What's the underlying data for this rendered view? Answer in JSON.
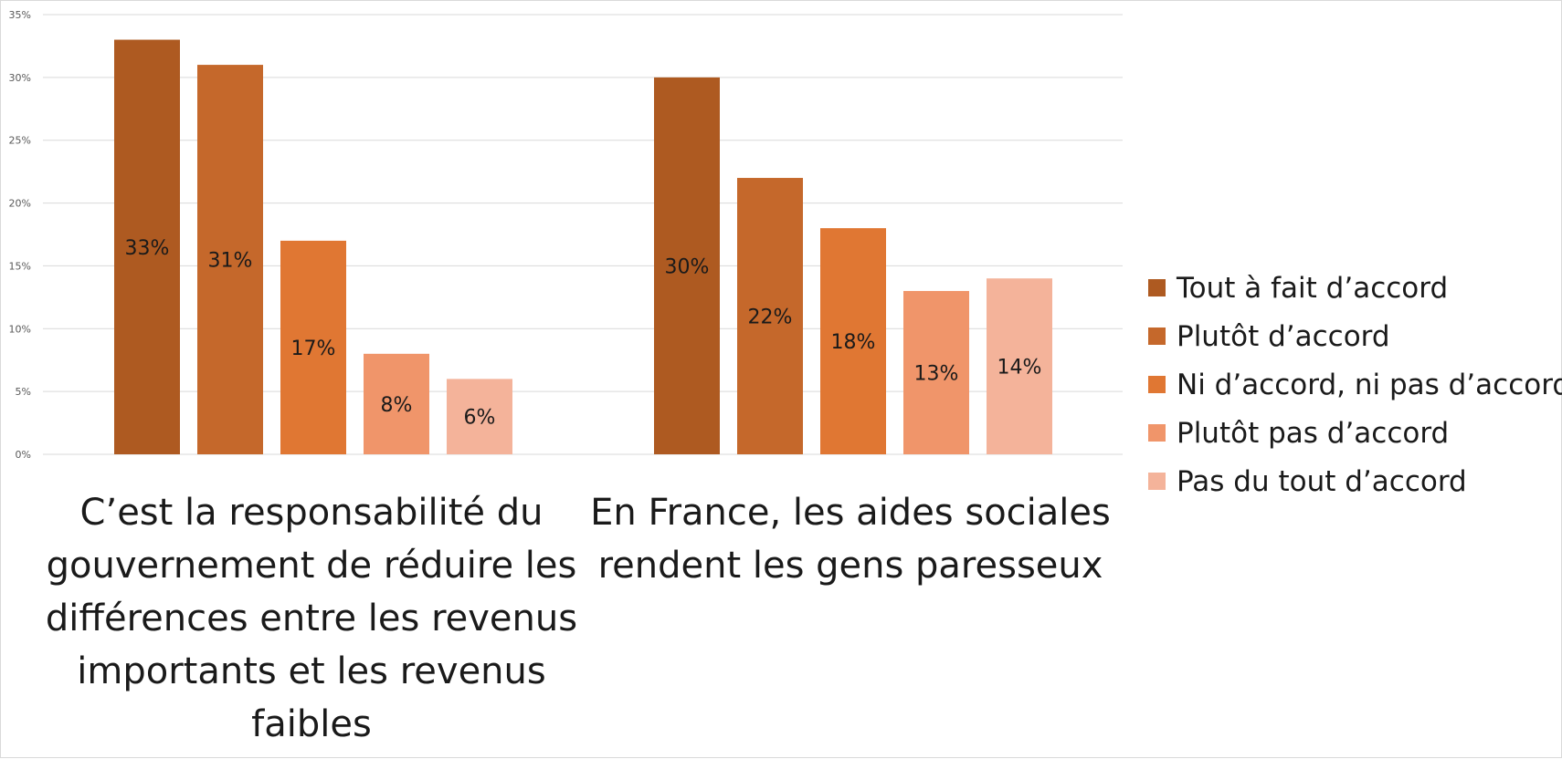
{
  "chart_data": {
    "type": "bar",
    "categories": [
      "C’est la responsabilité du gouvernement de réduire les différences entre les revenus importants et les revenus faibles",
      "En France, les aides sociales rendent les gens paresseux"
    ],
    "series": [
      {
        "name": "Tout à fait d’accord",
        "color": "#ae5a21",
        "values": [
          33,
          30
        ]
      },
      {
        "name": "Plutôt d’accord",
        "color": "#c5682b",
        "values": [
          31,
          22
        ]
      },
      {
        "name": "Ni d’accord, ni pas d’accord",
        "color": "#e07733",
        "values": [
          17,
          18
        ]
      },
      {
        "name": "Plutôt pas d’accord",
        "color": "#f0956a",
        "values": [
          8,
          13
        ]
      },
      {
        "name": "Pas du tout d’accord",
        "color": "#f4b39a",
        "values": [
          6,
          14
        ]
      }
    ],
    "data_labels": [
      [
        "33%",
        "31%",
        "17%",
        "8%",
        "6%"
      ],
      [
        "30%",
        "22%",
        "18%",
        "13%",
        "14%"
      ]
    ],
    "y_ticks": [
      "0%",
      "5%",
      "10%",
      "15%",
      "20%",
      "25%",
      "30%",
      "35%"
    ],
    "ylim": [
      0,
      35
    ],
    "grid": true,
    "legend_position": "right",
    "title": "",
    "xlabel": "",
    "ylabel": ""
  }
}
